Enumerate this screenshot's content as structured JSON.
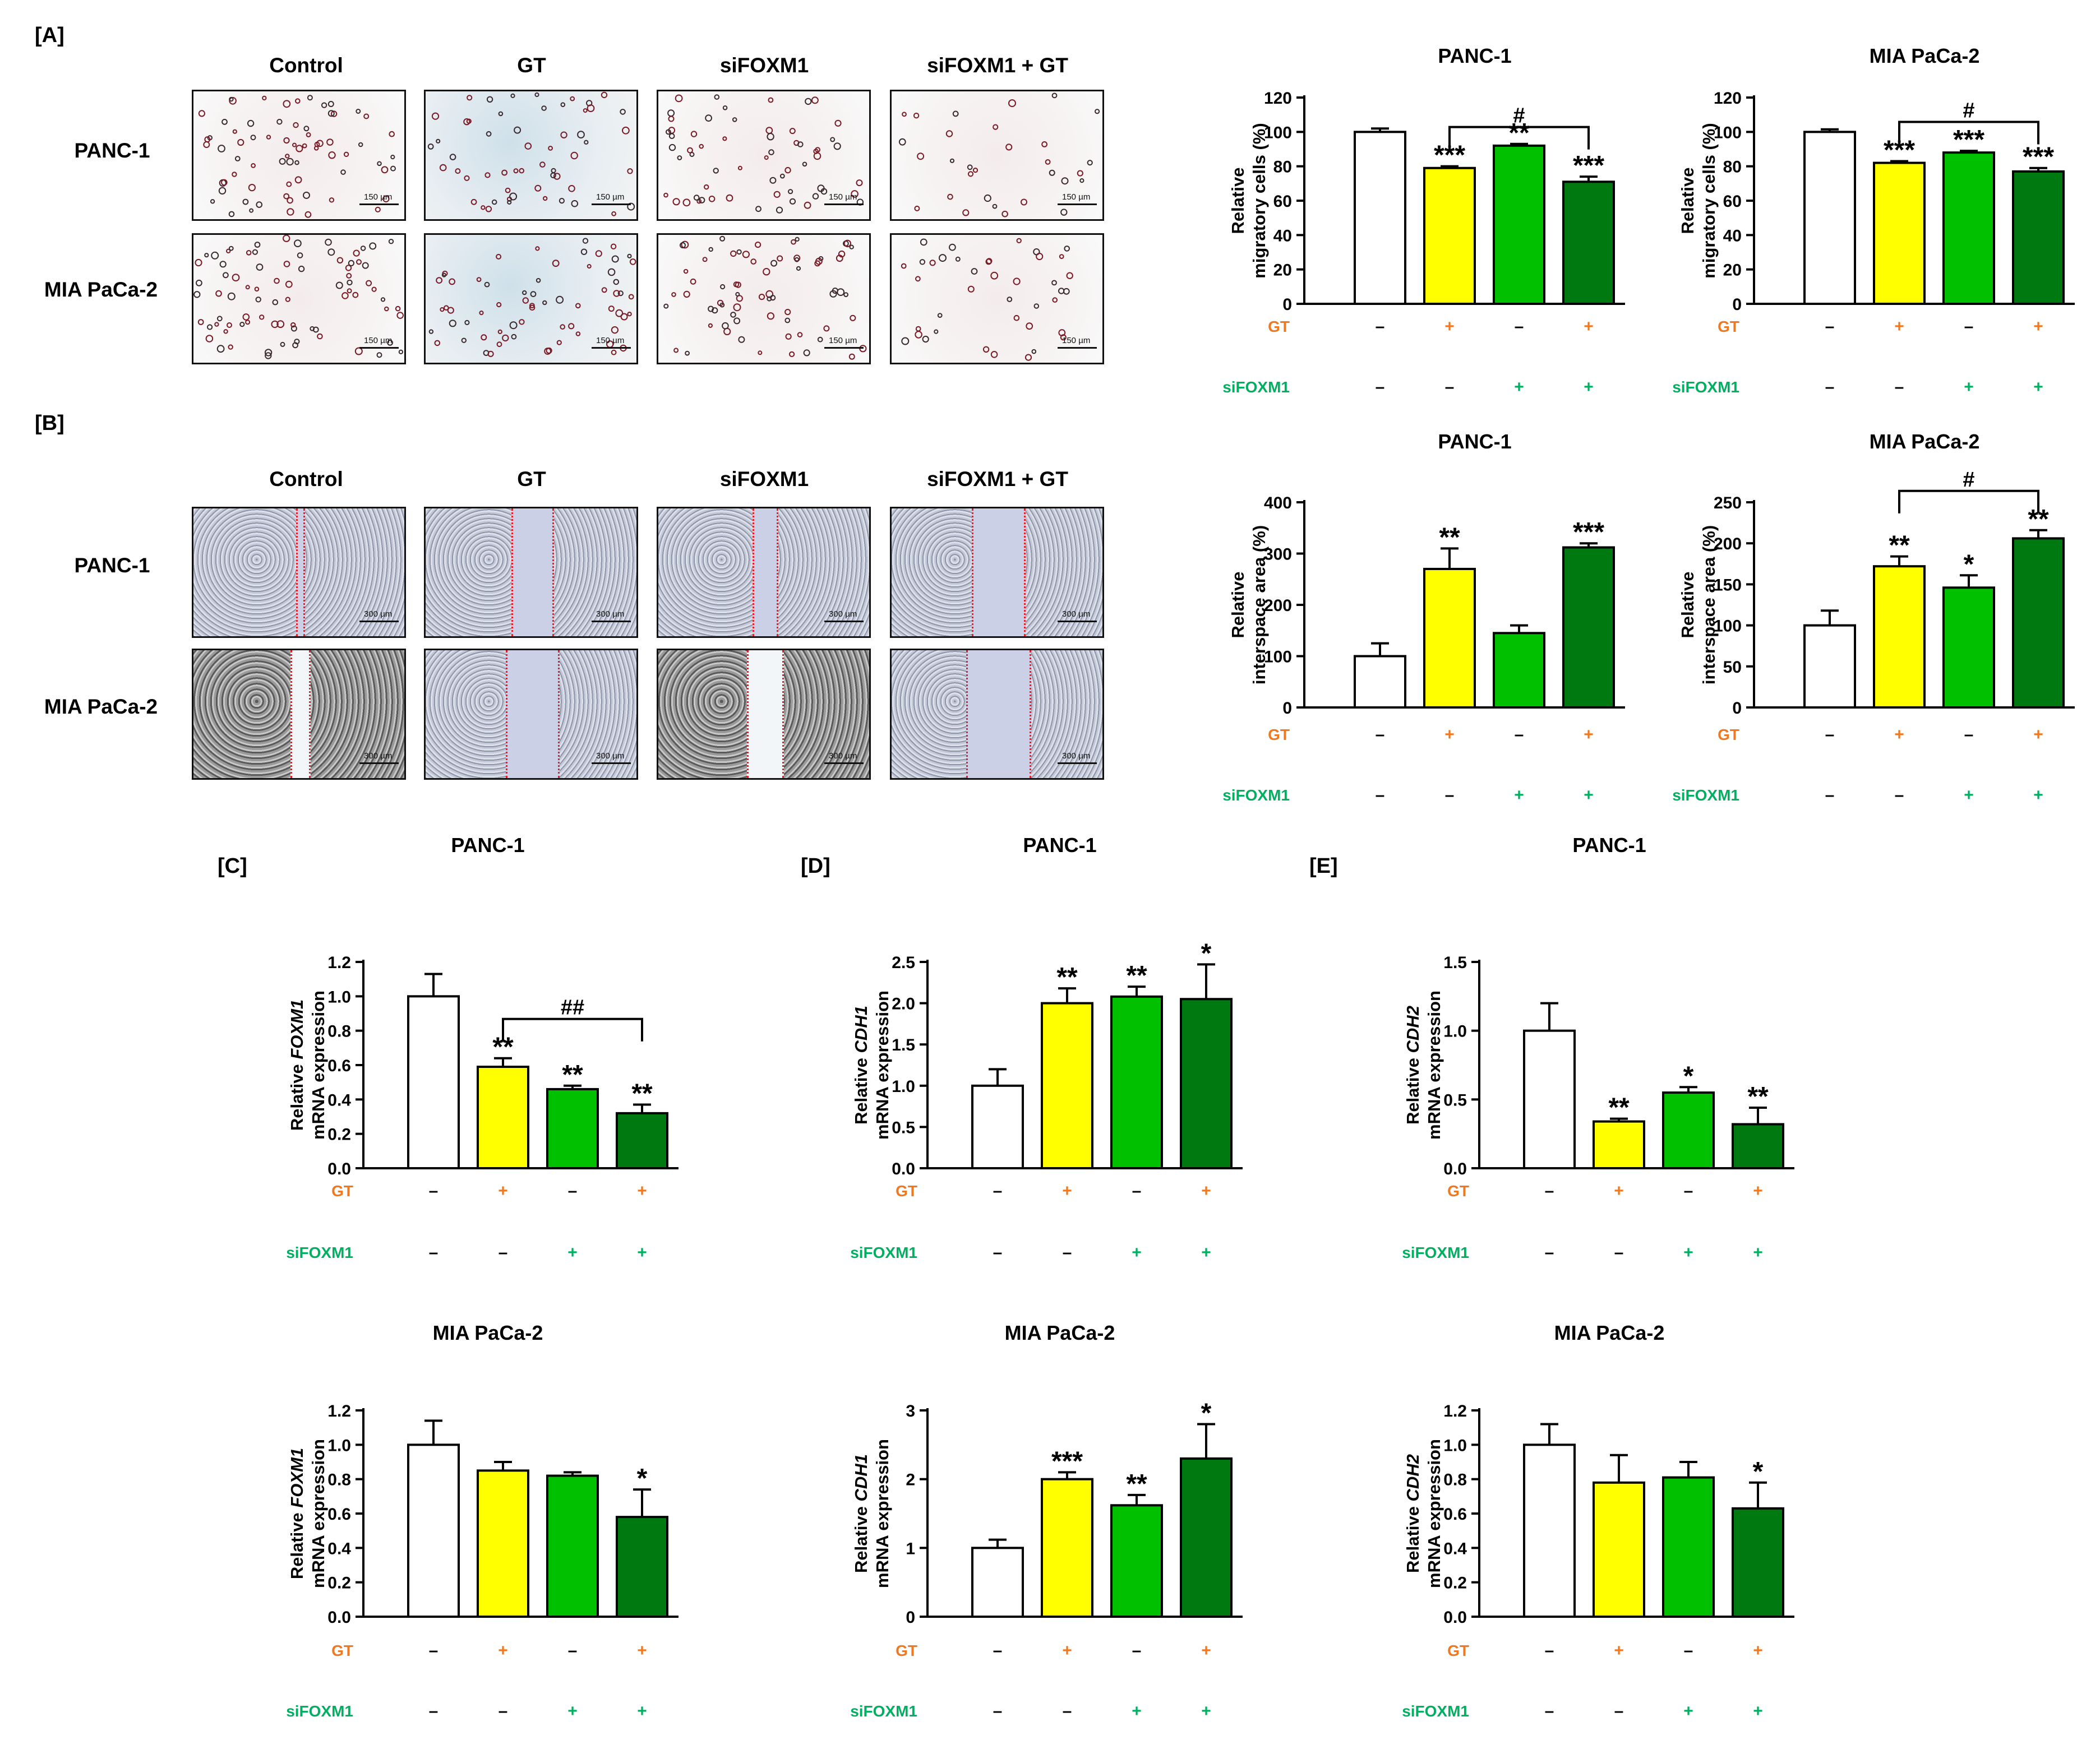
{
  "panels": {
    "A": {
      "label": "[A]",
      "columns": [
        "Control",
        "GT",
        "siFOXM1",
        "siFOXM1 + GT"
      ],
      "rows": [
        "PANC-1",
        "MIA PaCa-2"
      ],
      "scale": "150 µm"
    },
    "B": {
      "label": "[B]",
      "columns": [
        "Control",
        "GT",
        "siFOXM1",
        "siFOXM1 + GT"
      ],
      "rows": [
        "PANC-1",
        "MIA PaCa-2"
      ],
      "scale": "300 µm"
    },
    "C": {
      "label": "[C]"
    },
    "D": {
      "label": "[D]"
    },
    "E": {
      "label": "[E]"
    }
  },
  "legend": {
    "gt_label": "GT",
    "sifoxm1_label": "siFOXM1",
    "gt_row": [
      "–",
      "+",
      "–",
      "+"
    ],
    "sifoxm1_row": [
      "–",
      "–",
      "+",
      "+"
    ]
  },
  "colors": {
    "control": "#ffffff",
    "gt": "#ffff00",
    "sifoxm1": "#00c000",
    "combo": "#007a10",
    "gt_text": "#f07820",
    "sifoxm1_text": "#00b060"
  },
  "chart_data": [
    {
      "id": "a-panc",
      "type": "bar",
      "title": "PANC-1",
      "ylabel": [
        "Relative",
        "migratory cells (%)"
      ],
      "ylim": [
        0,
        120
      ],
      "yticks": [
        0,
        20,
        40,
        60,
        80,
        100,
        120
      ],
      "categories": [
        "Control",
        "GT",
        "siFOXM1",
        "siFOXM1 + GT"
      ],
      "values": [
        100,
        79,
        92,
        71
      ],
      "errors": [
        2,
        1,
        1,
        3
      ],
      "stars": [
        "",
        "***",
        "**",
        "***"
      ],
      "bracket": {
        "from": 1,
        "to": 3,
        "label": "#"
      }
    },
    {
      "id": "a-mia",
      "type": "bar",
      "title": "MIA PaCa-2",
      "ylabel": [
        "Relative",
        "migratory cells (%)"
      ],
      "ylim": [
        0,
        120
      ],
      "yticks": [
        0,
        20,
        40,
        60,
        80,
        100,
        120
      ],
      "categories": [
        "Control",
        "GT",
        "siFOXM1",
        "siFOXM1 + GT"
      ],
      "values": [
        100,
        82,
        88,
        77
      ],
      "errors": [
        1.5,
        1,
        1,
        2
      ],
      "stars": [
        "",
        "***",
        "***",
        "***"
      ],
      "bracket": {
        "from": 1,
        "to": 3,
        "label": "#"
      }
    },
    {
      "id": "b-panc",
      "type": "bar",
      "title": "PANC-1",
      "ylabel": [
        "Relative",
        "interspace area (%)"
      ],
      "ylim": [
        0,
        400
      ],
      "yticks": [
        0,
        100,
        200,
        300,
        400
      ],
      "categories": [
        "Control",
        "GT",
        "siFOXM1",
        "siFOXM1 + GT"
      ],
      "values": [
        100,
        270,
        145,
        312
      ],
      "errors": [
        25,
        40,
        15,
        8
      ],
      "stars": [
        "",
        "**",
        "",
        "***"
      ]
    },
    {
      "id": "b-mia",
      "type": "bar",
      "title": "MIA PaCa-2",
      "ylabel": [
        "Relative",
        "interspace area (%)"
      ],
      "ylim": [
        0,
        250
      ],
      "yticks": [
        0,
        50,
        100,
        150,
        200,
        250
      ],
      "categories": [
        "Control",
        "GT",
        "siFOXM1",
        "siFOXM1 + GT"
      ],
      "values": [
        100,
        172,
        146,
        206
      ],
      "errors": [
        18,
        12,
        15,
        10
      ],
      "stars": [
        "",
        "**",
        "*",
        "**"
      ],
      "bracket": {
        "from": 1,
        "to": 3,
        "label": "#"
      }
    },
    {
      "id": "c-panc",
      "type": "bar",
      "title": "PANC-1",
      "ylabel": [
        "Relative FOXM1",
        "mRNA expression"
      ],
      "gene": "FOXM1",
      "ylim": [
        0,
        1.2
      ],
      "yticks": [
        "0.0",
        "0.2",
        "0.4",
        "0.6",
        "0.8",
        "1.0",
        "1.2"
      ],
      "categories": [
        "Control",
        "GT",
        "siFOXM1",
        "siFOXM1 + GT"
      ],
      "values": [
        1.0,
        0.59,
        0.46,
        0.32
      ],
      "errors": [
        0.13,
        0.05,
        0.02,
        0.05
      ],
      "stars": [
        "",
        "**",
        "**",
        "**"
      ],
      "bracket": {
        "from": 1,
        "to": 3,
        "label": "##"
      }
    },
    {
      "id": "d-panc",
      "type": "bar",
      "title": "PANC-1",
      "ylabel": [
        "Relative CDH1",
        "mRNA expression"
      ],
      "gene": "CDH1",
      "ylim": [
        0,
        2.5
      ],
      "yticks": [
        "0.0",
        "0.5",
        "1.0",
        "1.5",
        "2.0",
        "2.5"
      ],
      "categories": [
        "Control",
        "GT",
        "siFOXM1",
        "siFOXM1 + GT"
      ],
      "values": [
        1.0,
        2.0,
        2.08,
        2.05
      ],
      "errors": [
        0.2,
        0.18,
        0.12,
        0.42
      ],
      "stars": [
        "",
        "**",
        "**",
        "*"
      ]
    },
    {
      "id": "e-panc",
      "type": "bar",
      "title": "PANC-1",
      "ylabel": [
        "Relative CDH2",
        "mRNA expression"
      ],
      "gene": "CDH2",
      "ylim": [
        0,
        1.5
      ],
      "yticks": [
        "0.0",
        "0.5",
        "1.0",
        "1.5"
      ],
      "categories": [
        "Control",
        "GT",
        "siFOXM1",
        "siFOXM1 + GT"
      ],
      "values": [
        1.0,
        0.34,
        0.55,
        0.32
      ],
      "errors": [
        0.2,
        0.02,
        0.04,
        0.12
      ],
      "stars": [
        "",
        "**",
        "*",
        "**"
      ]
    },
    {
      "id": "c-mia",
      "type": "bar",
      "title": "MIA PaCa-2",
      "ylabel": [
        "Relative FOXM1",
        "mRNA expression"
      ],
      "gene": "FOXM1",
      "ylim": [
        0,
        1.2
      ],
      "yticks": [
        "0.0",
        "0.2",
        "0.4",
        "0.6",
        "0.8",
        "1.0",
        "1.2"
      ],
      "categories": [
        "Control",
        "GT",
        "siFOXM1",
        "siFOXM1 + GT"
      ],
      "values": [
        1.0,
        0.85,
        0.82,
        0.58
      ],
      "errors": [
        0.14,
        0.05,
        0.02,
        0.16
      ],
      "stars": [
        "",
        "",
        "",
        "*"
      ]
    },
    {
      "id": "d-mia",
      "type": "bar",
      "title": "MIA PaCa-2",
      "ylabel": [
        "Relative CDH1",
        "mRNA expression"
      ],
      "gene": "CDH1",
      "ylim": [
        0,
        3
      ],
      "yticks": [
        "0",
        "1",
        "2",
        "3"
      ],
      "categories": [
        "Control",
        "GT",
        "siFOXM1",
        "siFOXM1 + GT"
      ],
      "values": [
        1.0,
        2.0,
        1.62,
        2.3
      ],
      "errors": [
        0.12,
        0.1,
        0.15,
        0.5
      ],
      "stars": [
        "",
        "***",
        "**",
        "*"
      ]
    },
    {
      "id": "e-mia",
      "type": "bar",
      "title": "MIA PaCa-2",
      "ylabel": [
        "Relative CDH2",
        "mRNA expression"
      ],
      "gene": "CDH2",
      "ylim": [
        0,
        1.2
      ],
      "yticks": [
        "0.0",
        "0.2",
        "0.4",
        "0.6",
        "0.8",
        "1.0",
        "1.2"
      ],
      "categories": [
        "Control",
        "GT",
        "siFOXM1",
        "siFOXM1 + GT"
      ],
      "values": [
        1.0,
        0.78,
        0.81,
        0.63
      ],
      "errors": [
        0.12,
        0.16,
        0.09,
        0.15
      ],
      "stars": [
        "",
        "",
        "",
        "*"
      ]
    }
  ]
}
